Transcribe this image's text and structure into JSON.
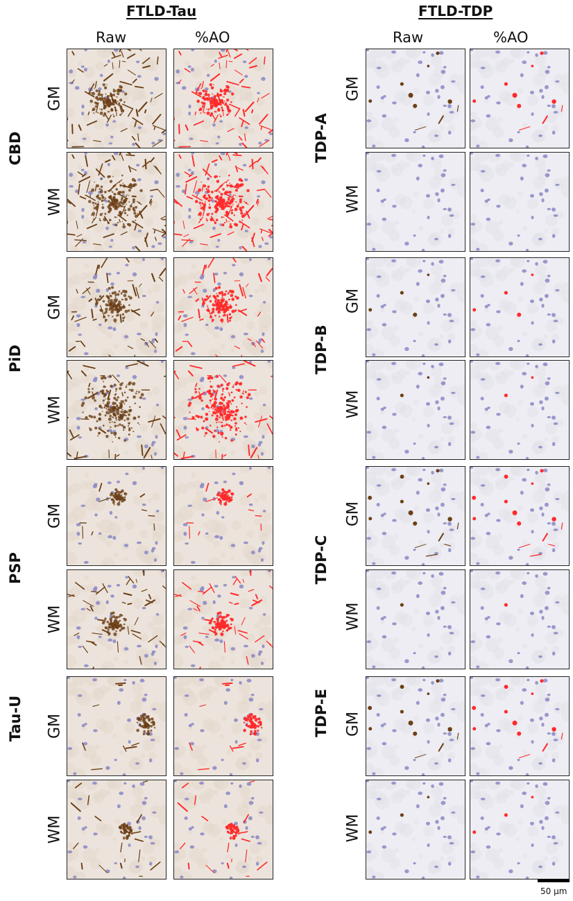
{
  "groups": [
    {
      "title": "FTLD-Tau",
      "columns": [
        "Raw",
        "%AO"
      ],
      "rows": [
        {
          "label": "CBD",
          "subrows": [
            "GM",
            "WM"
          ]
        },
        {
          "label": "PiD",
          "subrows": [
            "GM",
            "WM"
          ]
        },
        {
          "label": "PSP",
          "subrows": [
            "GM",
            "WM"
          ]
        },
        {
          "label": "Tau-U",
          "subrows": [
            "GM",
            "WM"
          ]
        }
      ]
    },
    {
      "title": "FTLD-TDP",
      "columns": [
        "Raw",
        "%AO"
      ],
      "rows": [
        {
          "label": "TDP-A",
          "subrows": [
            "GM",
            "WM"
          ]
        },
        {
          "label": "TDP-B",
          "subrows": [
            "GM",
            "WM"
          ]
        },
        {
          "label": "TDP-C",
          "subrows": [
            "GM",
            "WM"
          ]
        },
        {
          "label": "TDP-E",
          "subrows": [
            "GM",
            "WM"
          ]
        }
      ]
    }
  ],
  "scale_bar": {
    "label": "50 µm"
  },
  "colors": {
    "stain_brown": "#6b3f16",
    "threshold_red": "#ff2a2a",
    "nuclei_blue": "#8a87c4",
    "tissue_tau": "#ece4dc",
    "tissue_tdp": "#ededf3"
  }
}
